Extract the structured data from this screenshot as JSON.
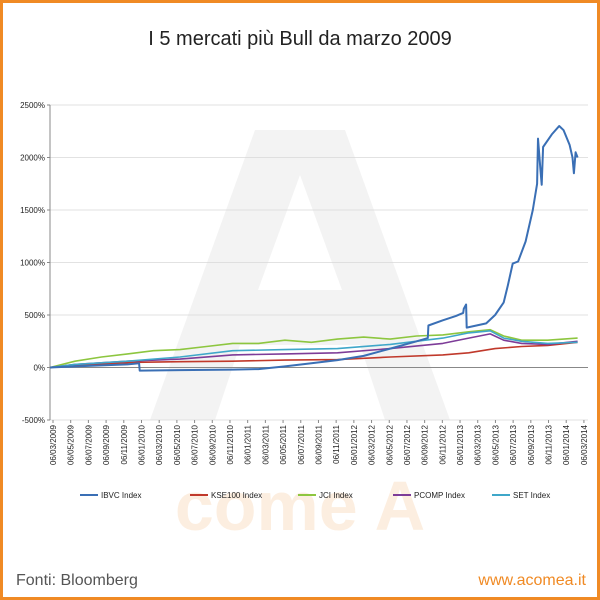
{
  "title": "I 5 mercati più Bull da marzo 2009",
  "footer": {
    "source": "Fonti: Bloomberg",
    "url": "www.acomea.it"
  },
  "watermark": {
    "letter": "A",
    "word": "come A"
  },
  "colors": {
    "frame": "#f08a24",
    "IBVC": "#3a6fb5",
    "KSE100": "#c0392b",
    "JCI": "#8dc63f",
    "PCOMP": "#7d3c98",
    "SET": "#3fa7c9",
    "grid": "#d9d9d9"
  },
  "chart_data": {
    "type": "line",
    "title": "I 5 mercati più Bull da marzo 2009",
    "ylim": [
      -500,
      2500
    ],
    "yticks": [
      -500,
      0,
      500,
      1000,
      1500,
      2000,
      2500
    ],
    "ytick_labels": [
      "-500%",
      "0%",
      "500%",
      "1000%",
      "1500%",
      "2000%",
      "2500%"
    ],
    "grid": "horizontal",
    "legend_position": "bottom",
    "x_tick_labels": [
      "06/03/2009",
      "06/05/2009",
      "06/07/2009",
      "06/09/2009",
      "06/11/2009",
      "06/01/2010",
      "06/03/2010",
      "06/05/2010",
      "06/07/2010",
      "06/09/2010",
      "06/11/2010",
      "06/01/2011",
      "06/03/2011",
      "06/05/2011",
      "06/07/2011",
      "06/09/2011",
      "06/11/2011",
      "06/01/2012",
      "06/03/2012",
      "06/05/2012",
      "06/07/2012",
      "06/09/2012",
      "06/11/2012",
      "06/01/2013",
      "06/03/2013",
      "06/05/2013",
      "06/07/2013",
      "06/09/2013",
      "06/11/2013",
      "06/01/2014",
      "06/03/2014"
    ],
    "x_start": "2009-03-06",
    "x_end": "2014-04-20",
    "series": [
      {
        "name": "IBVC Index",
        "color": "#3a6fb5",
        "points": [
          [
            "2009-03-06",
            0
          ],
          [
            "2009-06-01",
            10
          ],
          [
            "2009-09-01",
            20
          ],
          [
            "2009-12-01",
            30
          ],
          [
            "2010-01-10",
            40
          ],
          [
            "2010-01-12",
            -30
          ],
          [
            "2010-06-01",
            -25
          ],
          [
            "2010-12-01",
            -20
          ],
          [
            "2011-03-01",
            -15
          ],
          [
            "2011-06-01",
            10
          ],
          [
            "2011-09-01",
            40
          ],
          [
            "2011-12-01",
            70
          ],
          [
            "2012-03-01",
            110
          ],
          [
            "2012-06-01",
            180
          ],
          [
            "2012-09-01",
            250
          ],
          [
            "2012-10-10",
            280
          ],
          [
            "2012-10-12",
            400
          ],
          [
            "2012-12-01",
            450
          ],
          [
            "2013-01-15",
            490
          ],
          [
            "2013-02-10",
            520
          ],
          [
            "2013-02-12",
            560
          ],
          [
            "2013-02-20",
            600
          ],
          [
            "2013-02-22",
            380
          ],
          [
            "2013-05-01",
            420
          ],
          [
            "2013-06-01",
            500
          ],
          [
            "2013-07-01",
            620
          ],
          [
            "2013-07-15",
            780
          ],
          [
            "2013-08-01",
            990
          ],
          [
            "2013-08-20",
            1010
          ],
          [
            "2013-09-15",
            1200
          ],
          [
            "2013-10-10",
            1500
          ],
          [
            "2013-10-25",
            1750
          ],
          [
            "2013-10-28",
            2180
          ],
          [
            "2013-11-05",
            1900
          ],
          [
            "2013-11-10",
            1740
          ],
          [
            "2013-11-15",
            2100
          ],
          [
            "2013-12-15",
            2220
          ],
          [
            "2014-01-10",
            2300
          ],
          [
            "2014-01-25",
            2260
          ],
          [
            "2014-02-15",
            2120
          ],
          [
            "2014-02-25",
            2000
          ],
          [
            "2014-03-02",
            1850
          ],
          [
            "2014-03-08",
            2050
          ],
          [
            "2014-03-15",
            2000
          ]
        ]
      },
      {
        "name": "KSE100 Index",
        "color": "#c0392b",
        "points": [
          [
            "2009-03-06",
            0
          ],
          [
            "2009-08-01",
            30
          ],
          [
            "2010-01-01",
            50
          ],
          [
            "2010-06-01",
            55
          ],
          [
            "2010-12-01",
            60
          ],
          [
            "2011-06-01",
            70
          ],
          [
            "2011-12-01",
            75
          ],
          [
            "2012-06-01",
            100
          ],
          [
            "2012-12-01",
            120
          ],
          [
            "2013-03-01",
            140
          ],
          [
            "2013-06-01",
            180
          ],
          [
            "2013-09-01",
            200
          ],
          [
            "2013-12-01",
            210
          ],
          [
            "2014-03-15",
            240
          ]
        ]
      },
      {
        "name": "JCI Index",
        "color": "#8dc63f",
        "points": [
          [
            "2009-03-06",
            0
          ],
          [
            "2009-06-01",
            60
          ],
          [
            "2009-09-01",
            100
          ],
          [
            "2009-12-01",
            130
          ],
          [
            "2010-03-01",
            160
          ],
          [
            "2010-06-01",
            170
          ],
          [
            "2010-09-01",
            200
          ],
          [
            "2010-12-01",
            230
          ],
          [
            "2011-03-01",
            230
          ],
          [
            "2011-06-01",
            260
          ],
          [
            "2011-09-01",
            240
          ],
          [
            "2011-12-01",
            270
          ],
          [
            "2012-03-01",
            290
          ],
          [
            "2012-06-01",
            270
          ],
          [
            "2012-09-01",
            300
          ],
          [
            "2012-12-01",
            310
          ],
          [
            "2013-03-01",
            340
          ],
          [
            "2013-05-15",
            360
          ],
          [
            "2013-07-01",
            300
          ],
          [
            "2013-09-01",
            260
          ],
          [
            "2013-12-01",
            260
          ],
          [
            "2014-03-15",
            280
          ]
        ]
      },
      {
        "name": "PCOMP Index",
        "color": "#7d3c98",
        "points": [
          [
            "2009-03-06",
            0
          ],
          [
            "2009-06-01",
            30
          ],
          [
            "2009-12-01",
            60
          ],
          [
            "2010-06-01",
            80
          ],
          [
            "2010-12-01",
            120
          ],
          [
            "2011-06-01",
            130
          ],
          [
            "2011-12-01",
            140
          ],
          [
            "2012-06-01",
            180
          ],
          [
            "2012-12-01",
            230
          ],
          [
            "2013-03-01",
            280
          ],
          [
            "2013-05-15",
            320
          ],
          [
            "2013-07-01",
            260
          ],
          [
            "2013-09-01",
            230
          ],
          [
            "2013-12-01",
            220
          ],
          [
            "2014-03-15",
            250
          ]
        ]
      },
      {
        "name": "SET Index",
        "color": "#3fa7c9",
        "points": [
          [
            "2009-03-06",
            0
          ],
          [
            "2009-06-01",
            30
          ],
          [
            "2009-12-01",
            60
          ],
          [
            "2010-06-01",
            100
          ],
          [
            "2010-12-01",
            160
          ],
          [
            "2011-06-01",
            170
          ],
          [
            "2011-12-01",
            180
          ],
          [
            "2012-06-01",
            220
          ],
          [
            "2012-12-01",
            280
          ],
          [
            "2013-03-01",
            330
          ],
          [
            "2013-05-15",
            350
          ],
          [
            "2013-07-01",
            280
          ],
          [
            "2013-09-01",
            250
          ],
          [
            "2013-12-01",
            230
          ],
          [
            "2014-03-15",
            240
          ]
        ]
      }
    ]
  }
}
